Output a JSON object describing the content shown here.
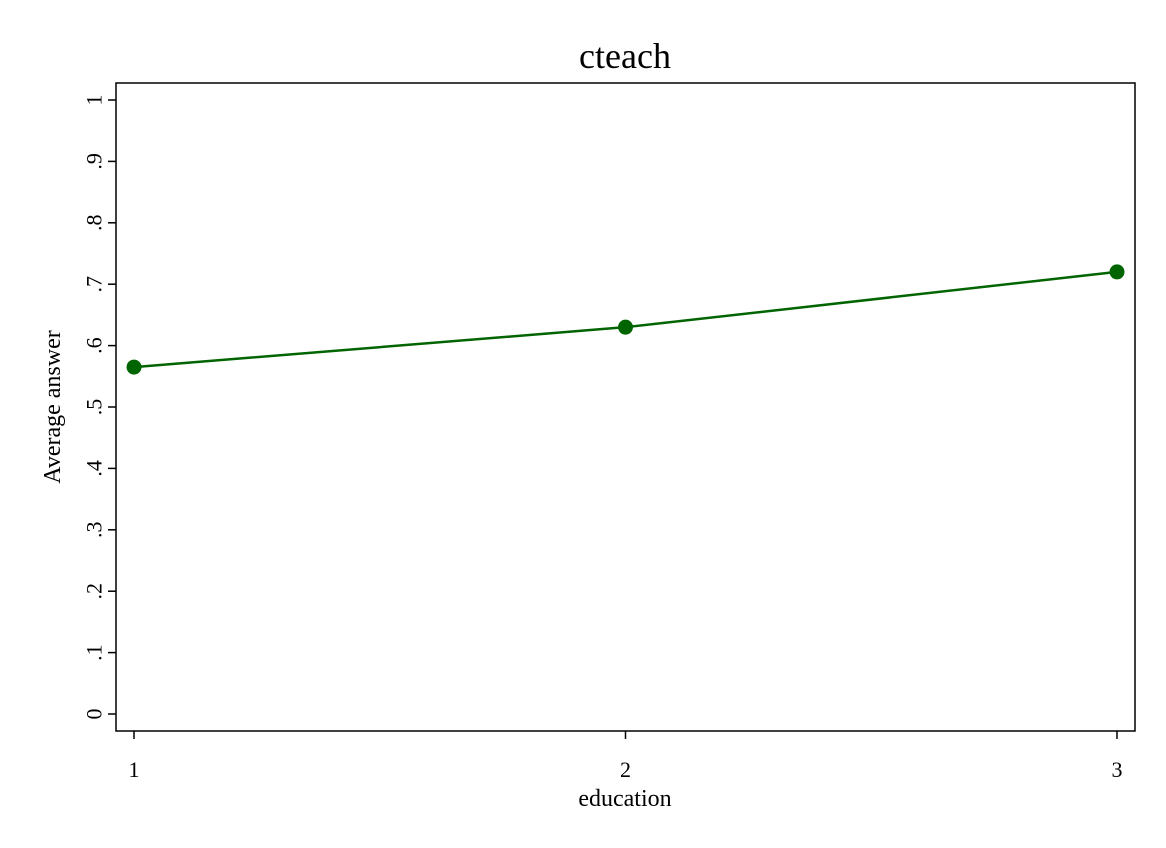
{
  "chart_data": {
    "type": "line",
    "title": "cteach",
    "xlabel": "education",
    "ylabel": "Average answer",
    "x": [
      1,
      2,
      3
    ],
    "x_tick_labels": [
      "1",
      "2",
      "3"
    ],
    "y_ticks": [
      0,
      0.1,
      0.2,
      0.3,
      0.4,
      0.5,
      0.6,
      0.7,
      0.8,
      0.9,
      1
    ],
    "y_tick_labels": [
      "0",
      ".1",
      ".2",
      ".3",
      ".4",
      ".5",
      ".6",
      ".7",
      ".8",
      ".9",
      "1"
    ],
    "ylim": [
      0,
      1
    ],
    "xlim": [
      1,
      3
    ],
    "grid": false,
    "series": [
      {
        "values": [
          0.565,
          0.63,
          0.72
        ],
        "color": "#006400"
      }
    ]
  }
}
